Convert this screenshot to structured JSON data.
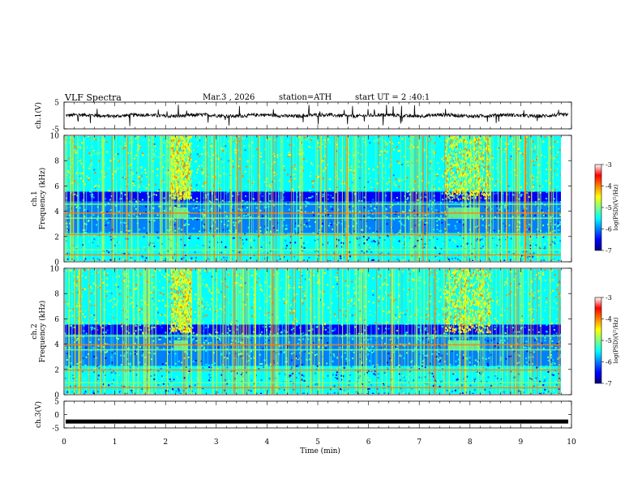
{
  "header": {
    "title": "VLF Spectra",
    "date": "Mar.3 , 2026",
    "station": "station=ATH",
    "start": "start UT = 2 :40:1"
  },
  "chart_data": [
    {
      "type": "line",
      "panel": "waveform-top",
      "ylabel": "ch.1(V)",
      "ylim": [
        -5,
        5
      ],
      "yticks": [
        "5",
        "-5"
      ],
      "xlim": [
        0,
        10
      ],
      "series": [
        {
          "trace_level": 0,
          "trace_amplitude": 1.3
        }
      ]
    },
    {
      "type": "heatmap",
      "panel": "spectrogram-ch1",
      "ylabel": "ch.1\nFrequency (kHz)",
      "ylim": [
        0,
        10
      ],
      "yticks": [
        "0",
        "2",
        "4",
        "6",
        "8",
        "10"
      ],
      "xlim": [
        0,
        10
      ],
      "colorbar": {
        "label": "log(PSD)(V²/Hz)",
        "ticks": [
          "-3",
          "-4",
          "-5",
          "-6",
          "-7"
        ],
        "range": [
          -7,
          -3
        ]
      },
      "bright_intervals_min": [
        [
          2.1,
          2.5
        ],
        [
          7.5,
          8.4
        ]
      ],
      "band_lines_khz": [
        2.2,
        3.5,
        3.9,
        4.6,
        0.6,
        1.0
      ]
    },
    {
      "type": "heatmap",
      "panel": "spectrogram-ch2",
      "ylabel": "ch.2\nFrequency (kHz)",
      "ylim": [
        0,
        10
      ],
      "yticks": [
        "0",
        "2",
        "4",
        "6",
        "8",
        "10"
      ],
      "xlim": [
        0,
        10
      ],
      "colorbar": {
        "label": "log(PSD)(V²/Hz)",
        "ticks": [
          "-3",
          "-4",
          "-5",
          "-6",
          "-7"
        ],
        "range": [
          -7,
          -3
        ]
      },
      "bright_intervals_min": [
        [
          2.1,
          2.5
        ],
        [
          7.5,
          8.4
        ]
      ],
      "band_lines_khz": [
        2.0,
        3.6,
        4.0,
        4.7,
        0.6,
        1.0
      ]
    },
    {
      "type": "line",
      "panel": "waveform-bottom",
      "ylabel": "ch.3(V)",
      "ylim": [
        -5,
        5
      ],
      "yticks": [
        "5",
        "0",
        "-5"
      ],
      "xlim": [
        0,
        10
      ],
      "series": [
        {
          "trace_level": -2.6,
          "trace_amplitude": 0.05
        }
      ]
    }
  ],
  "xaxis": {
    "label": "Time (min)",
    "ticks": [
      "0",
      "1",
      "2",
      "3",
      "4",
      "5",
      "6",
      "7",
      "8",
      "9",
      "10"
    ]
  },
  "colors": {
    "cmap": [
      "#000080",
      "#0000ff",
      "#0080ff",
      "#00ffff",
      "#80ff80",
      "#ffff00",
      "#ff8000",
      "#ff0000",
      "#ffffff"
    ]
  }
}
